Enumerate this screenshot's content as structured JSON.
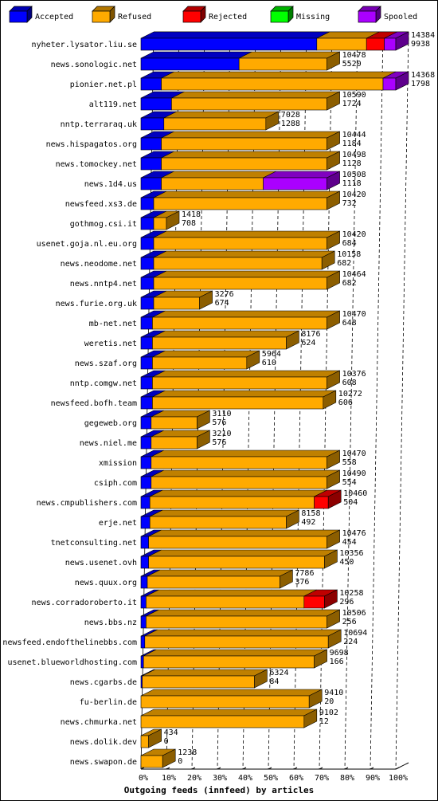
{
  "chart_data": {
    "type": "bar",
    "orientation": "horizontal",
    "stacked": true,
    "style": "3d",
    "title": "Outgoing feeds (innfeed) by articles",
    "xlim": [
      0,
      100
    ],
    "x_ticks": [
      "0%",
      "10%",
      "20%",
      "30%",
      "40%",
      "50%",
      "60%",
      "70%",
      "80%",
      "90%",
      "100%"
    ],
    "legend": [
      {
        "name": "Accepted",
        "color": "#0000ff"
      },
      {
        "name": "Refused",
        "color": "#ffaa00"
      },
      {
        "name": "Rejected",
        "color": "#ff0000"
      },
      {
        "name": "Missing",
        "color": "#00ff00"
      },
      {
        "name": "Spooled",
        "color": "#aa00ff"
      }
    ],
    "legend_position": "top",
    "rows": [
      {
        "name": "nyheter.lysator.liu.se",
        "total": "14384",
        "accepted_label": "9938",
        "segments": [
          69,
          19.5,
          7,
          0,
          4.5
        ]
      },
      {
        "name": "news.sonologic.net",
        "total": "10478",
        "accepted_label": "5520",
        "segments": [
          38.5,
          34.5,
          0,
          0,
          0
        ]
      },
      {
        "name": "pionier.net.pl",
        "total": "14368",
        "accepted_label": "1798",
        "segments": [
          8,
          87,
          0,
          0,
          5
        ]
      },
      {
        "name": "alt119.net",
        "total": "10590",
        "accepted_label": "1724",
        "segments": [
          12,
          61,
          0,
          0,
          0
        ]
      },
      {
        "name": "nntp.terraraq.uk",
        "total": "7028",
        "accepted_label": "1288",
        "segments": [
          9,
          40,
          0,
          0,
          0
        ]
      },
      {
        "name": "news.hispagatos.org",
        "total": "10444",
        "accepted_label": "1184",
        "segments": [
          8,
          65,
          0,
          0,
          0
        ]
      },
      {
        "name": "news.tomockey.net",
        "total": "10498",
        "accepted_label": "1128",
        "segments": [
          8,
          65,
          0,
          0,
          0
        ]
      },
      {
        "name": "news.1d4.us",
        "total": "10508",
        "accepted_label": "1118",
        "segments": [
          8,
          40,
          0,
          0,
          25
        ]
      },
      {
        "name": "newsfeed.xs3.de",
        "total": "10420",
        "accepted_label": "732",
        "segments": [
          5,
          68,
          0,
          0,
          0
        ]
      },
      {
        "name": "gothmog.csi.it",
        "total": "1418",
        "accepted_label": "708",
        "segments": [
          5,
          5,
          0,
          0,
          0
        ]
      },
      {
        "name": "usenet.goja.nl.eu.org",
        "total": "10420",
        "accepted_label": "684",
        "segments": [
          5,
          68,
          0,
          0,
          0
        ]
      },
      {
        "name": "news.neodome.net",
        "total": "10158",
        "accepted_label": "682",
        "segments": [
          5,
          66,
          0,
          0,
          0
        ]
      },
      {
        "name": "news.nntp4.net",
        "total": "10464",
        "accepted_label": "682",
        "segments": [
          5,
          68,
          0,
          0,
          0
        ]
      },
      {
        "name": "news.furie.org.uk",
        "total": "3276",
        "accepted_label": "674",
        "segments": [
          5,
          18,
          0,
          0,
          0
        ]
      },
      {
        "name": "mb-net.net",
        "total": "10470",
        "accepted_label": "648",
        "segments": [
          4.5,
          68.5,
          0,
          0,
          0
        ]
      },
      {
        "name": "weretis.net",
        "total": "8176",
        "accepted_label": "624",
        "segments": [
          4.5,
          52.5,
          0,
          0,
          0
        ]
      },
      {
        "name": "news.szaf.org",
        "total": "5964",
        "accepted_label": "610",
        "segments": [
          4.5,
          37,
          0,
          0,
          0
        ]
      },
      {
        "name": "nntp.comgw.net",
        "total": "10376",
        "accepted_label": "608",
        "segments": [
          4.5,
          68.5,
          0,
          0,
          0
        ]
      },
      {
        "name": "newsfeed.bofh.team",
        "total": "10272",
        "accepted_label": "606",
        "segments": [
          4.5,
          67,
          0,
          0,
          0
        ]
      },
      {
        "name": "gegeweb.org",
        "total": "3110",
        "accepted_label": "576",
        "segments": [
          4,
          18,
          0,
          0,
          0
        ]
      },
      {
        "name": "news.niel.me",
        "total": "3210",
        "accepted_label": "576",
        "segments": [
          4,
          18,
          0,
          0,
          0
        ]
      },
      {
        "name": "xmission",
        "total": "10470",
        "accepted_label": "558",
        "segments": [
          4,
          69,
          0,
          0,
          0
        ]
      },
      {
        "name": "csiph.com",
        "total": "10490",
        "accepted_label": "554",
        "segments": [
          4,
          69,
          0,
          0,
          0
        ]
      },
      {
        "name": "news.cmpublishers.com",
        "total": "10460",
        "accepted_label": "504",
        "segments": [
          3.5,
          64.5,
          5.5,
          0,
          0
        ]
      },
      {
        "name": "erje.net",
        "total": "8158",
        "accepted_label": "492",
        "segments": [
          3.5,
          53.5,
          0,
          0,
          0
        ]
      },
      {
        "name": "tnetconsulting.net",
        "total": "10476",
        "accepted_label": "454",
        "segments": [
          3,
          70,
          0,
          0,
          0
        ]
      },
      {
        "name": "news.usenet.ovh",
        "total": "10356",
        "accepted_label": "450",
        "segments": [
          3,
          69,
          0,
          0,
          0
        ]
      },
      {
        "name": "news.quux.org",
        "total": "7786",
        "accepted_label": "376",
        "segments": [
          2.5,
          52,
          0,
          0,
          0
        ]
      },
      {
        "name": "news.corradoroberto.it",
        "total": "10258",
        "accepted_label": "296",
        "segments": [
          2,
          62,
          8,
          0,
          0
        ]
      },
      {
        "name": "news.bbs.nz",
        "total": "10506",
        "accepted_label": "256",
        "segments": [
          2,
          71,
          0,
          0,
          0
        ]
      },
      {
        "name": "newsfeed.endofthelinebbs.com",
        "total": "10694",
        "accepted_label": "224",
        "segments": [
          1.5,
          72,
          0,
          0,
          0
        ]
      },
      {
        "name": "usenet.blueworldhosting.com",
        "total": "9698",
        "accepted_label": "166",
        "segments": [
          1,
          67,
          0,
          0,
          0
        ]
      },
      {
        "name": "news.cgarbs.de",
        "total": "6324",
        "accepted_label": "84",
        "segments": [
          0.5,
          44,
          0,
          0,
          0
        ]
      },
      {
        "name": "fu-berlin.de",
        "total": "9410",
        "accepted_label": "20",
        "segments": [
          0,
          66,
          0,
          0,
          0
        ]
      },
      {
        "name": "news.chmurka.net",
        "total": "9102",
        "accepted_label": "12",
        "segments": [
          0,
          64,
          0,
          0,
          0
        ]
      },
      {
        "name": "news.dolik.dev",
        "total": "434",
        "accepted_label": "0",
        "segments": [
          0,
          3,
          0,
          0,
          0
        ]
      },
      {
        "name": "news.swapon.de",
        "total": "1238",
        "accepted_label": "0",
        "segments": [
          0,
          8.5,
          0,
          0,
          0
        ]
      }
    ]
  }
}
